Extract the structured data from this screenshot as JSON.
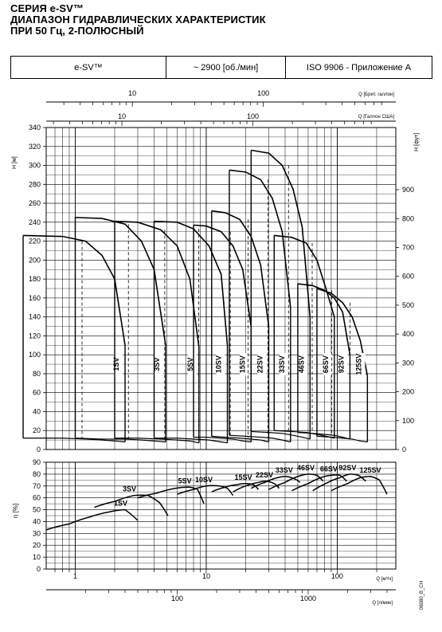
{
  "header": {
    "line1": "СЕРИЯ e-SV™",
    "line2": "ДИАПАЗОН ГИДРАВЛИЧЕСКИХ ХАРАКТЕРИСТИК",
    "line3": "ПРИ 50 Гц, 2-ПОЛЮСНЫЙ"
  },
  "infobox": {
    "series": "e-SV™",
    "speed_value": "~ 2900",
    "speed_unit": "[об./мин]",
    "standard": "ISO 9906 - Приложение A"
  },
  "chart_data": [
    {
      "type": "line",
      "title": "",
      "x_axes": [
        {
          "label": "Q [Брит. галлон]",
          "scale": "log",
          "ticks": [
            "10",
            "100"
          ]
        },
        {
          "label": "Q [Галлон США]",
          "scale": "log",
          "ticks": [
            "10",
            "100"
          ]
        }
      ],
      "ylabel": "H [м]",
      "ylim": [
        0,
        340
      ],
      "yticks": [
        "0",
        "20",
        "40",
        "60",
        "80",
        "100",
        "120",
        "140",
        "160",
        "180",
        "200",
        "220",
        "240",
        "260",
        "280",
        "300",
        "320",
        "340"
      ],
      "ylabel_right": "H [фут]",
      "yticks_right": [
        "0",
        "100",
        "200",
        "300",
        "400",
        "500",
        "600",
        "700",
        "800",
        "900"
      ],
      "grid": true,
      "series_labels": [
        "1SV",
        "3SV",
        "5SV",
        "10SV",
        "15SV",
        "22SV",
        "33SV",
        "46SV",
        "66SV",
        "92SV",
        "125SV"
      ],
      "envelopes_m3h": [
        {
          "name": "1SV",
          "q": [
            0.4,
            0.8,
            1.2,
            1.6,
            2.0,
            2.4
          ],
          "h_top": [
            226,
            225,
            220,
            205,
            180,
            110
          ],
          "h_bottom": [
            12,
            12,
            11,
            10,
            9,
            8
          ]
        },
        {
          "name": "3SV",
          "q": [
            1.0,
            1.6,
            2.4,
            3.2,
            4.0,
            4.9
          ],
          "h_top": [
            245,
            244,
            238,
            220,
            190,
            110
          ],
          "h_bottom": [
            12,
            11,
            11,
            10,
            9,
            8
          ]
        },
        {
          "name": "5SV",
          "q": [
            2.0,
            3.0,
            4.5,
            6.0,
            7.5,
            8.8
          ],
          "h_top": [
            241,
            240,
            232,
            215,
            180,
            108
          ],
          "h_bottom": [
            12,
            12,
            11,
            10,
            9,
            7
          ]
        },
        {
          "name": "10SV",
          "q": [
            4.0,
            6.0,
            8.0,
            10.5,
            13.0,
            14.5
          ],
          "h_top": [
            241,
            240,
            233,
            215,
            185,
            110
          ],
          "h_bottom": [
            12,
            12,
            11,
            10,
            8,
            7
          ]
        },
        {
          "name": "15SV",
          "q": [
            8.0,
            10.0,
            13.0,
            16.0,
            19.0,
            22.0
          ],
          "h_top": [
            237,
            236,
            230,
            215,
            190,
            130
          ],
          "h_bottom": [
            13,
            13,
            12,
            11,
            9,
            8
          ]
        },
        {
          "name": "22SV",
          "q": [
            11.0,
            14.0,
            18.0,
            22.0,
            26.0,
            30.0
          ],
          "h_top": [
            252,
            250,
            243,
            225,
            195,
            130
          ],
          "h_bottom": [
            14,
            13,
            12,
            11,
            10,
            8
          ]
        },
        {
          "name": "33SV",
          "q": [
            15.0,
            20.0,
            26.0,
            32.0,
            38.0,
            44.0
          ],
          "h_top": [
            295,
            293,
            285,
            265,
            230,
            150
          ],
          "h_bottom": [
            15,
            14,
            13,
            12,
            10,
            8
          ]
        },
        {
          "name": "46SV",
          "q": [
            22.0,
            30.0,
            38.0,
            46.0,
            54.0,
            62.0
          ],
          "h_top": [
            316,
            313,
            300,
            275,
            235,
            140
          ],
          "h_bottom": [
            19,
            18,
            17,
            15,
            13,
            11
          ]
        },
        {
          "name": "66SV",
          "q": [
            33.0,
            45.0,
            58.0,
            70.0,
            82.0,
            95.0
          ],
          "h_top": [
            226,
            224,
            218,
            200,
            170,
            140
          ],
          "h_bottom": [
            20,
            19,
            18,
            16,
            14,
            12
          ]
        },
        {
          "name": "92SV",
          "q": [
            50.0,
            65.0,
            80.0,
            95.0,
            110.0,
            125.0
          ],
          "h_top": [
            175,
            173,
            168,
            160,
            145,
            100
          ],
          "h_bottom": [
            18,
            17,
            16,
            15,
            13,
            11
          ]
        },
        {
          "name": "125SV",
          "q": [
            70.0,
            90.0,
            110.0,
            130.0,
            150.0,
            170.0
          ],
          "h_top": [
            170,
            165,
            155,
            140,
            115,
            78
          ],
          "h_bottom": [
            14,
            13,
            12,
            11,
            9,
            8
          ]
        }
      ],
      "xlim_m3h": [
        0.6,
        280
      ]
    },
    {
      "type": "line",
      "title": "",
      "ylabel": "η [%]",
      "ylim": [
        0,
        90
      ],
      "yticks": [
        "0",
        "10",
        "20",
        "30",
        "40",
        "50",
        "60",
        "70",
        "80",
        "90"
      ],
      "x_axes": [
        {
          "label": "Q [м³/ч]",
          "scale": "log",
          "ticks": [
            "1",
            "10",
            "100"
          ]
        },
        {
          "label": "Q [л/мин]",
          "scale": "log",
          "ticks": [
            "100",
            "1000"
          ]
        }
      ],
      "grid": true,
      "series": [
        {
          "name": "1SV",
          "q": [
            0.6,
            0.9,
            1.3,
            1.8,
            2.4,
            3.0
          ],
          "eta": [
            33,
            38,
            44,
            48,
            50,
            41
          ]
        },
        {
          "name": "3SV",
          "q": [
            1.4,
            2.0,
            2.8,
            3.6,
            4.4,
            5.1
          ],
          "eta": [
            52,
            57,
            62,
            62,
            56,
            45
          ]
        },
        {
          "name": "5SV",
          "q": [
            3.0,
            4.2,
            5.8,
            7.4,
            8.6,
            9.6
          ],
          "eta": [
            60,
            64,
            68,
            69,
            67,
            55
          ]
        },
        {
          "name": "10SV",
          "q": [
            6.0,
            8.0,
            10.0,
            12.5,
            14.5,
            16.0
          ],
          "eta": [
            63,
            67,
            70,
            70,
            68,
            62
          ]
        },
        {
          "name": "15SV",
          "q": [
            11.0,
            14.0,
            17.0,
            20.0,
            23.0,
            25.0
          ],
          "eta": [
            65,
            69,
            71,
            72,
            71,
            67
          ]
        },
        {
          "name": "22SV",
          "q": [
            16.0,
            20.0,
            25.0,
            29.0,
            33.0,
            36.0
          ],
          "eta": [
            65,
            70,
            73,
            74,
            72,
            68
          ]
        },
        {
          "name": "33SV",
          "q": [
            22.0,
            28.0,
            35.0,
            41.0,
            47.0,
            52.0
          ],
          "eta": [
            68,
            73,
            77,
            78,
            76,
            73
          ]
        },
        {
          "name": "46SV",
          "q": [
            30.0,
            40.0,
            50.0,
            60.0,
            70.0,
            78.0
          ],
          "eta": [
            67,
            73,
            78,
            80,
            79,
            74
          ]
        },
        {
          "name": "66SV",
          "q": [
            45.0,
            60.0,
            75.0,
            90.0,
            105.0,
            118.0
          ],
          "eta": [
            66,
            72,
            77,
            79,
            79,
            74
          ]
        },
        {
          "name": "92SV",
          "q": [
            65.0,
            85.0,
            105.0,
            125.0,
            145.0,
            165.0
          ],
          "eta": [
            66,
            73,
            77,
            80,
            79,
            74
          ]
        },
        {
          "name": "125SV",
          "q": [
            90.0,
            120.0,
            150.0,
            180.0,
            210.0,
            240.0
          ],
          "eta": [
            66,
            72,
            77,
            78,
            75,
            63
          ]
        }
      ],
      "xlim": [
        0.6,
        280
      ]
    }
  ],
  "code": "06080_B_CH"
}
